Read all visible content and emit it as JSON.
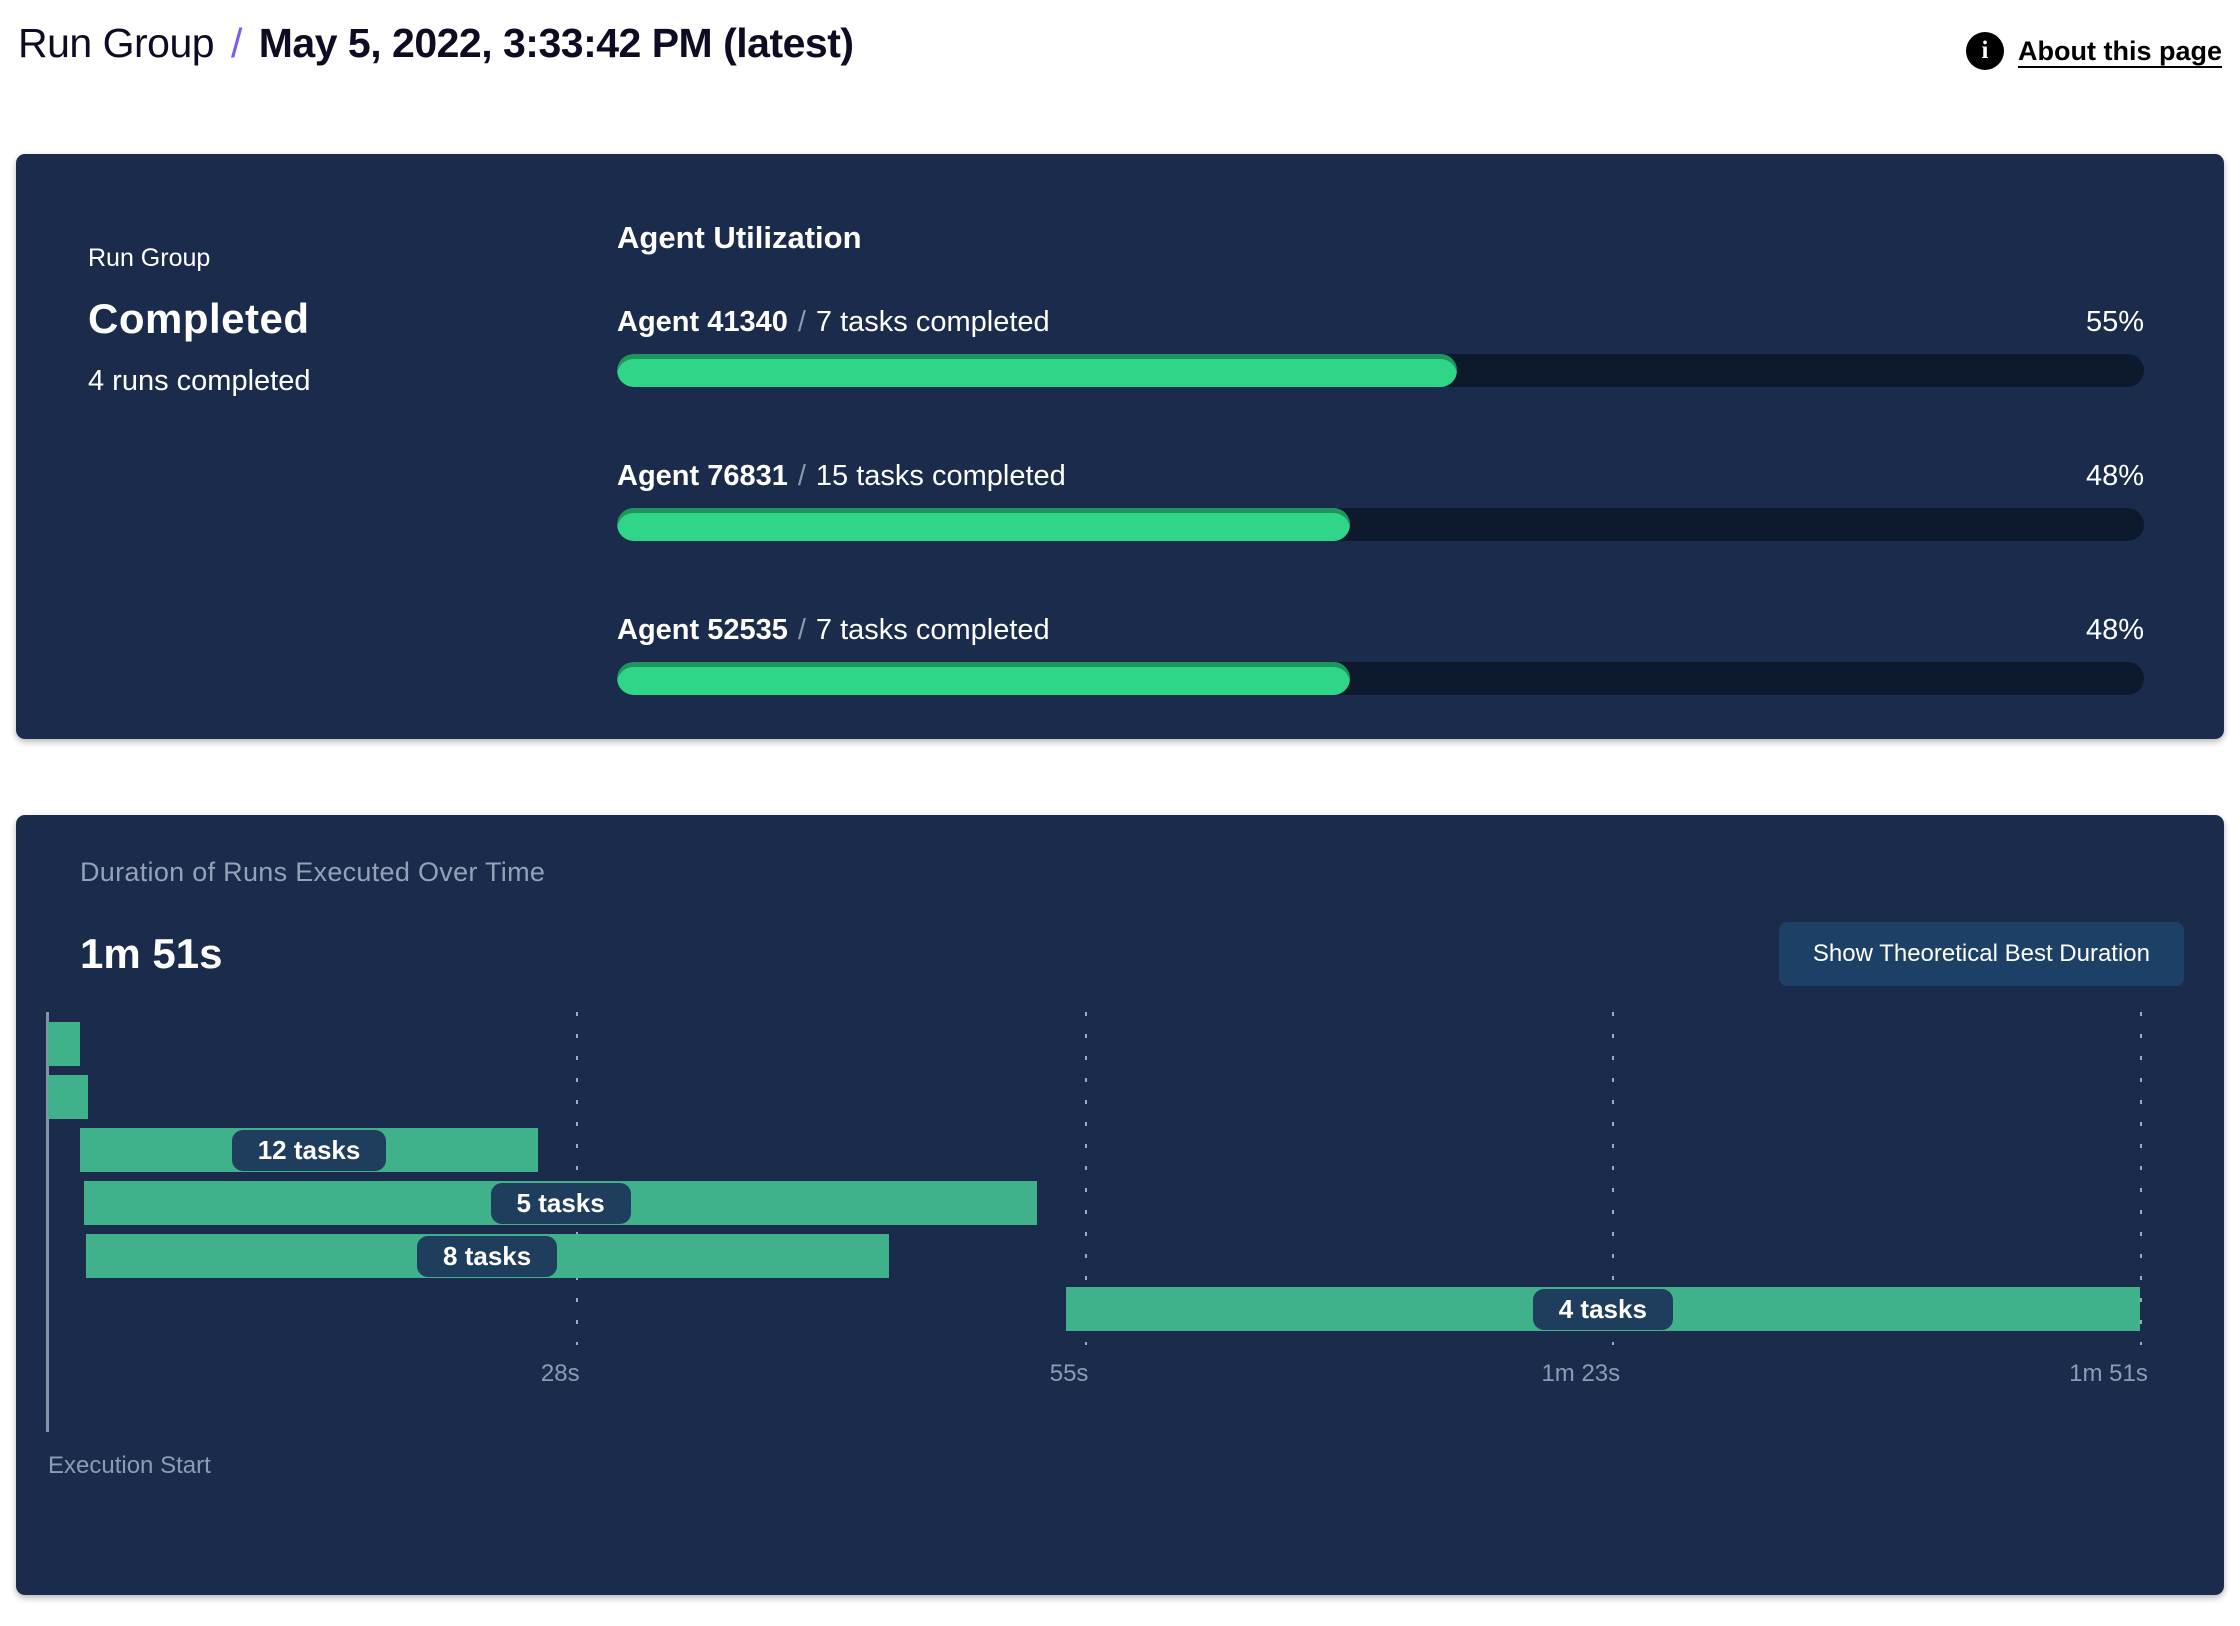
{
  "header": {
    "breadcrumb_root": "Run Group",
    "separator": "/",
    "title": "May 5, 2022, 3:33:42 PM (latest)",
    "about_link": "About this page",
    "info_icon_glyph": "i"
  },
  "colors": {
    "panel_navy": "#1a2b4c",
    "progress_track": "#0d1a2e",
    "progress_green": "#2fd687",
    "gantt_green": "#3fb28c",
    "pill_navy": "#1f3e5e",
    "accent_purple": "#7c5cf0",
    "muted_text": "#8d9cb4",
    "button_blue": "#1d4166"
  },
  "status_panel": {
    "label": "Run Group",
    "status": "Completed",
    "subtext": "4 runs completed",
    "utilization": {
      "heading": "Agent Utilization",
      "separator": "/",
      "agents": [
        {
          "name": "Agent 41340",
          "tasks": "7 tasks completed",
          "percent": 55,
          "percent_label": "55%"
        },
        {
          "name": "Agent 76831",
          "tasks": "15 tasks completed",
          "percent": 48,
          "percent_label": "48%"
        },
        {
          "name": "Agent 52535",
          "tasks": "7 tasks completed",
          "percent": 48,
          "percent_label": "48%"
        }
      ]
    }
  },
  "duration_panel": {
    "title": "Duration of Runs Executed Over Time",
    "total_duration": "1m 51s",
    "button_label": "Show Theoretical Best Duration",
    "execution_start_label": "Execution Start"
  },
  "chart_data": {
    "type": "bar",
    "subtype": "gantt-timeline",
    "title": "Duration of Runs Executed Over Time",
    "total_duration_label": "1m 51s",
    "x_unit": "seconds",
    "x_min": 0,
    "x_max": 111,
    "grid": "dashed-vertical",
    "ticks": [
      {
        "t": 28,
        "label": "28s"
      },
      {
        "t": 55,
        "label": "55s"
      },
      {
        "t": 83,
        "label": "1m 23s"
      },
      {
        "t": 111,
        "label": "1m 51s"
      }
    ],
    "runs": [
      {
        "start": 0,
        "end": 1.7,
        "label": ""
      },
      {
        "start": 0,
        "end": 2.1,
        "label": ""
      },
      {
        "start": 1.7,
        "end": 26,
        "label": "12 tasks"
      },
      {
        "start": 1.9,
        "end": 52.5,
        "label": "5 tasks"
      },
      {
        "start": 2,
        "end": 44.6,
        "label": "8 tasks"
      },
      {
        "start": 54,
        "end": 111,
        "label": "4 tasks"
      }
    ]
  }
}
